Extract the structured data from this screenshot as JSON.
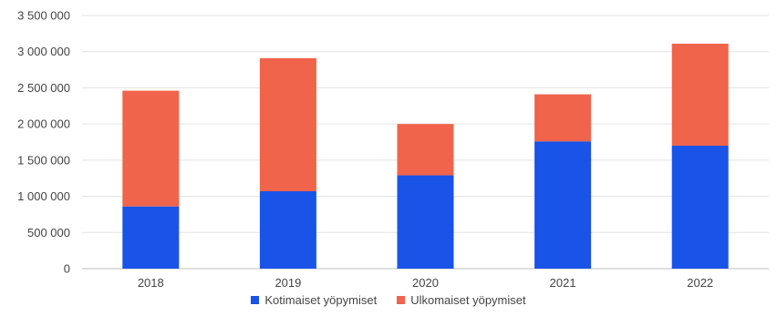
{
  "chart_data": {
    "type": "bar",
    "stacked": true,
    "title": "",
    "xlabel": "",
    "ylabel": "",
    "categories": [
      "2018",
      "2019",
      "2020",
      "2021",
      "2022"
    ],
    "series": [
      {
        "name": "Kotimaiset yöpymiset",
        "color": "#1a53e8",
        "values": [
          860000,
          1070000,
          1290000,
          1760000,
          1700000
        ]
      },
      {
        "name": "Ulkomaiset yöpymiset",
        "color": "#f0644b",
        "values": [
          1600000,
          1840000,
          710000,
          650000,
          1410000
        ]
      }
    ],
    "ylim": [
      0,
      3500000
    ],
    "yticks": [
      0,
      500000,
      1000000,
      1500000,
      2000000,
      2500000,
      3000000,
      3500000
    ],
    "ytick_labels": [
      "0",
      "500 000",
      "1 000 000",
      "1 500 000",
      "2 000 000",
      "2 500 000",
      "3 000 000",
      "3 500 000"
    ],
    "grid": true,
    "legend_position": "bottom"
  }
}
